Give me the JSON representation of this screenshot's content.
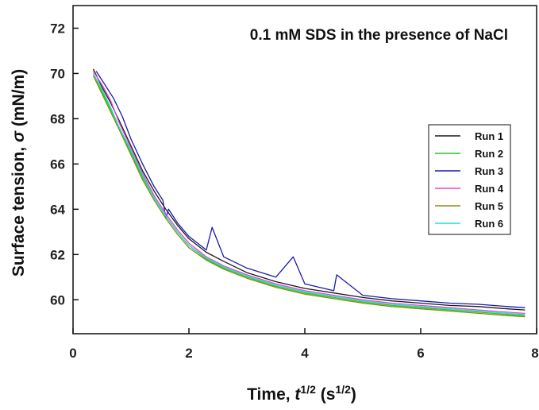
{
  "chart_data": {
    "type": "line",
    "title": "0.1 mM SDS in the presence of NaCl",
    "xlabel": {
      "prefix": "Time, ",
      "var": "t",
      "var_sup": "1/2",
      "unit_open": " (s",
      "unit_sup": "1/2",
      "unit_close": ")"
    },
    "ylabel": {
      "prefix": "Surface tension, ",
      "var": "σ",
      "unit": " (mN/m)"
    },
    "xlim": [
      0,
      8
    ],
    "ylim": [
      58.5,
      73
    ],
    "xticks": [
      0,
      2,
      4,
      6,
      8
    ],
    "yticks": [
      60,
      62,
      64,
      66,
      68,
      70,
      72
    ],
    "grid": false,
    "legend_position": "center-right",
    "series": [
      {
        "name": "Run 1",
        "color": "#1a1a1a",
        "x": [
          0.35,
          0.5,
          0.65,
          0.8,
          1.0,
          1.2,
          1.4,
          1.6,
          1.8,
          2.0,
          2.3,
          2.6,
          3.0,
          3.5,
          4.0,
          4.5,
          5.0,
          5.5,
          6.0,
          6.5,
          7.0,
          7.5,
          7.8
        ],
        "y": [
          70.2,
          69.4,
          68.7,
          67.9,
          66.8,
          65.7,
          64.8,
          64.0,
          63.3,
          62.7,
          62.1,
          61.7,
          61.2,
          60.8,
          60.5,
          60.3,
          60.1,
          59.95,
          59.85,
          59.75,
          59.7,
          59.6,
          59.55
        ]
      },
      {
        "name": "Run 2",
        "color": "#22cc22",
        "x": [
          0.35,
          0.5,
          0.65,
          0.8,
          1.0,
          1.2,
          1.4,
          1.6,
          1.8,
          2.0,
          2.3,
          2.6,
          3.0,
          3.5,
          4.0,
          4.5,
          5.0,
          5.5,
          6.0,
          6.5,
          7.0,
          7.5,
          7.8
        ],
        "y": [
          70.0,
          69.2,
          68.4,
          67.6,
          66.5,
          65.4,
          64.5,
          63.7,
          63.0,
          62.4,
          61.8,
          61.4,
          61.0,
          60.6,
          60.3,
          60.1,
          59.9,
          59.75,
          59.65,
          59.55,
          59.45,
          59.35,
          59.3
        ]
      },
      {
        "name": "Run 3",
        "color": "#1a1aaa",
        "x": [
          0.4,
          0.55,
          0.7,
          0.85,
          1.0,
          1.2,
          1.4,
          1.55,
          1.6,
          1.65,
          1.8,
          2.0,
          2.3,
          2.4,
          2.6,
          3.0,
          3.5,
          3.8,
          4.0,
          4.5,
          4.55,
          5.0,
          5.5,
          6.0,
          6.5,
          7.0,
          7.5,
          7.8
        ],
        "y": [
          70.1,
          69.5,
          68.9,
          68.1,
          67.1,
          66.0,
          65.0,
          64.4,
          63.6,
          64.0,
          63.4,
          62.8,
          62.2,
          63.2,
          61.9,
          61.4,
          61.0,
          61.9,
          60.7,
          60.4,
          61.1,
          60.2,
          60.05,
          59.95,
          59.85,
          59.8,
          59.7,
          59.65
        ]
      },
      {
        "name": "Run 4",
        "color": "#ee44cc",
        "x": [
          0.35,
          0.5,
          0.65,
          0.8,
          1.0,
          1.2,
          1.4,
          1.6,
          1.8,
          2.0,
          2.3,
          2.6,
          3.0,
          3.5,
          4.0,
          4.5,
          5.0,
          5.5,
          6.0,
          6.5,
          7.0,
          7.5,
          7.8
        ],
        "y": [
          70.1,
          69.5,
          68.8,
          67.8,
          66.7,
          65.6,
          64.6,
          63.8,
          63.1,
          62.5,
          61.9,
          61.5,
          61.1,
          60.7,
          60.4,
          60.2,
          60.0,
          59.85,
          59.75,
          59.65,
          59.55,
          59.45,
          59.4
        ]
      },
      {
        "name": "Run 5",
        "color": "#8a8a10",
        "x": [
          0.35,
          0.5,
          0.65,
          0.8,
          1.0,
          1.2,
          1.4,
          1.6,
          1.8,
          2.0,
          2.3,
          2.6,
          3.0,
          3.5,
          4.0,
          4.5,
          5.0,
          5.5,
          6.0,
          6.5,
          7.0,
          7.5,
          7.8
        ],
        "y": [
          69.9,
          69.1,
          68.3,
          67.5,
          66.4,
          65.3,
          64.4,
          63.6,
          62.9,
          62.3,
          61.75,
          61.35,
          60.95,
          60.55,
          60.25,
          60.05,
          59.85,
          59.7,
          59.6,
          59.5,
          59.4,
          59.3,
          59.25
        ]
      },
      {
        "name": "Run 6",
        "color": "#22dddd",
        "x": [
          0.35,
          0.5,
          0.65,
          0.8,
          1.0,
          1.2,
          1.4,
          1.6,
          1.8,
          2.0,
          2.3,
          2.6,
          3.0,
          3.5,
          4.0,
          4.5,
          5.0,
          5.5,
          6.0,
          6.5,
          7.0,
          7.5,
          7.8
        ],
        "y": [
          70.0,
          69.3,
          68.5,
          67.6,
          66.6,
          65.5,
          64.5,
          63.7,
          63.0,
          62.4,
          61.85,
          61.45,
          61.05,
          60.65,
          60.35,
          60.15,
          59.95,
          59.8,
          59.7,
          59.6,
          59.5,
          59.4,
          59.35
        ]
      }
    ]
  }
}
